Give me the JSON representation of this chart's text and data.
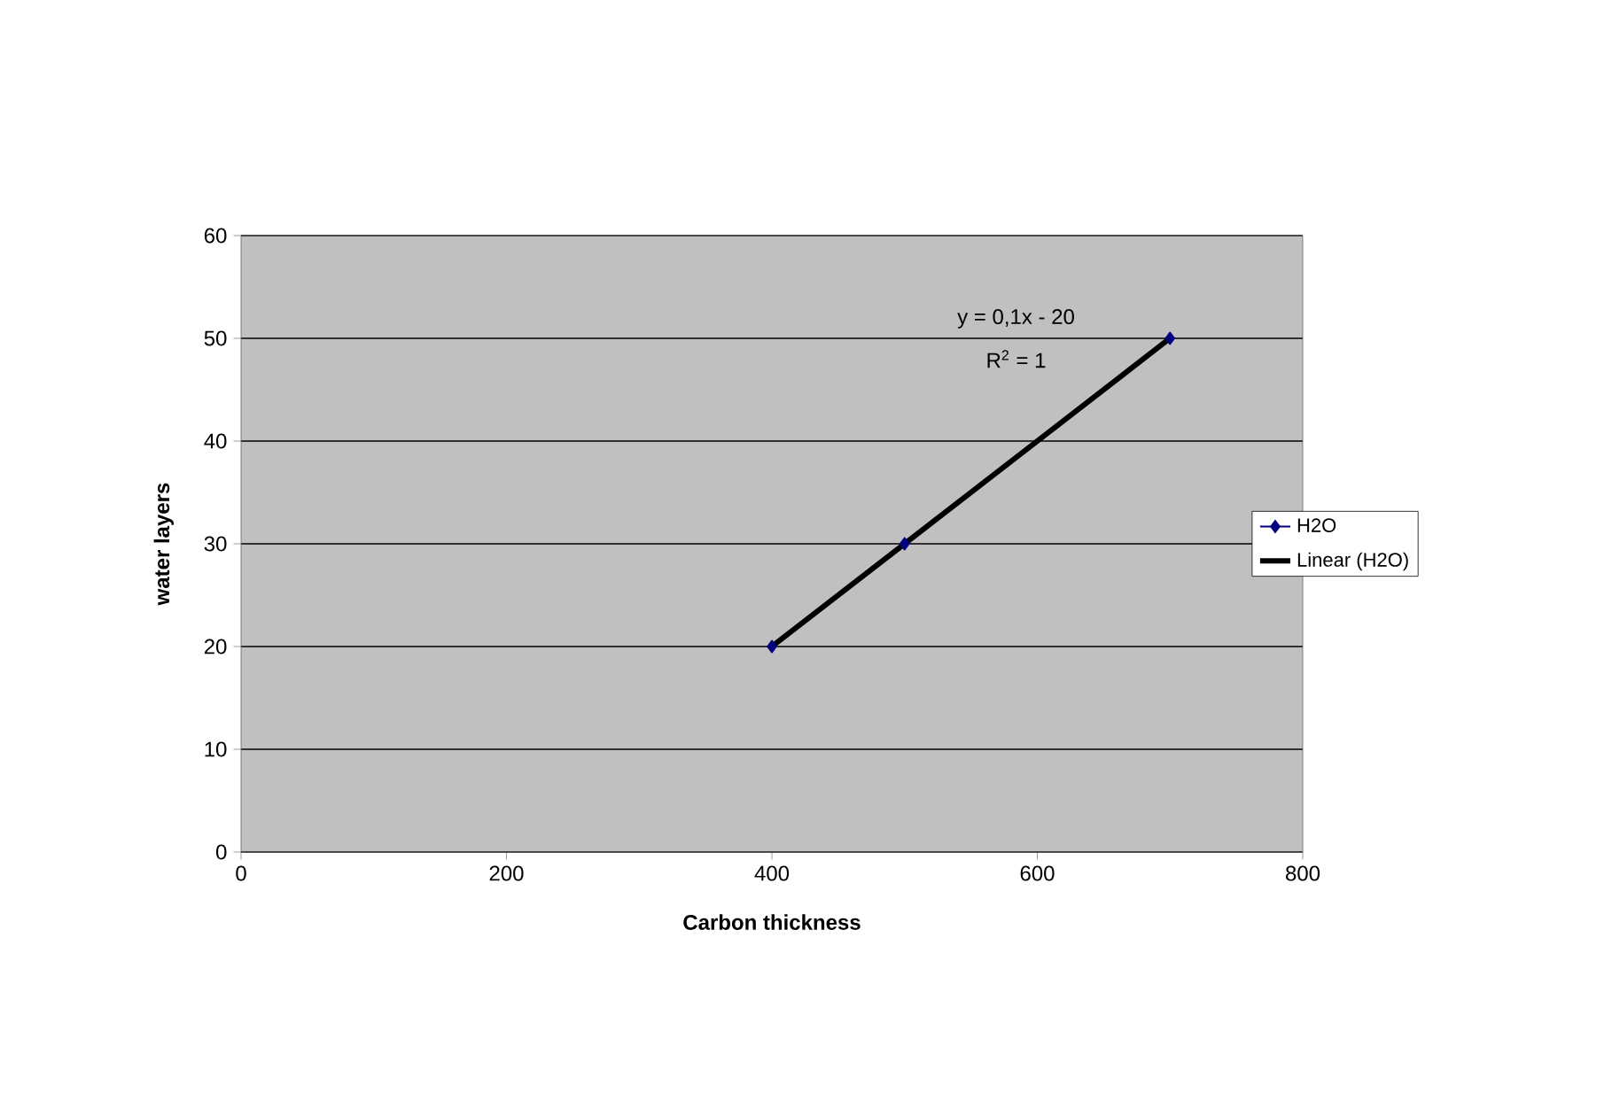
{
  "chart_data": {
    "type": "line",
    "xlabel": "Carbon thickness",
    "ylabel": "water layers",
    "xlim": [
      0,
      800
    ],
    "ylim": [
      0,
      60
    ],
    "xticks": [
      0,
      200,
      400,
      600,
      800
    ],
    "yticks": [
      0,
      10,
      20,
      30,
      40,
      50,
      60
    ],
    "grid": "y",
    "legend": "right",
    "annotations": [
      "y = 0,1x - 20",
      "R$^{2}$ = 1"
    ],
    "series": [
      {
        "name": "H2O",
        "type": "scatter",
        "color": "#000080",
        "x": [
          400,
          500,
          700
        ],
        "values": [
          20,
          30,
          50
        ],
        "marker": "diamond"
      },
      {
        "name": "Linear (H2O)",
        "color": "#000000",
        "x": [
          400,
          700
        ],
        "values": [
          20,
          50
        ],
        "marker": "none"
      }
    ]
  }
}
